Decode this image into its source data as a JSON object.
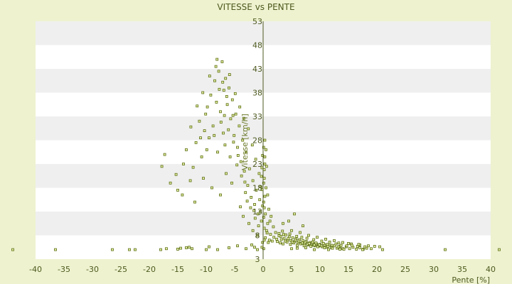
{
  "chart_data": {
    "type": "scatter",
    "title": "VITESSE vs PENTE",
    "xlabel": "Pente [%]",
    "ylabel": "Vitesse [km/h]",
    "xlim": [
      -40,
      40
    ],
    "ylim": [
      3,
      53
    ],
    "xticks": [
      -40,
      -35,
      -30,
      -25,
      -20,
      -15,
      -10,
      -5,
      0,
      5,
      10,
      15,
      20,
      25,
      30,
      35,
      40
    ],
    "yticks": [
      3,
      8,
      13,
      18,
      23,
      28,
      33,
      38,
      43,
      48,
      53
    ],
    "grid": "horizontal alternating bands",
    "legend": "none",
    "colors": {
      "background": "#eef2cf",
      "band_light": "#ffffff",
      "band_dark": "#efefef",
      "marker": "#5a6e12",
      "marker_fill": "#e8f0a8",
      "text": "#4d5a1f"
    },
    "series": [
      {
        "points": [
          [
            -44,
            5
          ],
          [
            -36.5,
            5
          ],
          [
            -26.5,
            5
          ],
          [
            -23.5,
            5
          ],
          [
            -22.5,
            5
          ],
          [
            -18,
            5
          ],
          [
            -17,
            5.2
          ],
          [
            -15,
            5.1
          ],
          [
            -14.5,
            5.3
          ],
          [
            -13.5,
            5.4
          ],
          [
            -13,
            5.5
          ],
          [
            -12.5,
            5.2
          ],
          [
            -10,
            5
          ],
          [
            -9.5,
            5.6
          ],
          [
            -8,
            5
          ],
          [
            -6,
            5.4
          ],
          [
            -4.5,
            5.8
          ],
          [
            -3,
            5.2
          ],
          [
            -2,
            6
          ],
          [
            -1.5,
            5.5
          ],
          [
            -1,
            5
          ],
          [
            -0.2,
            5.5
          ],
          [
            -0.1,
            6.5
          ],
          [
            0.1,
            5.2
          ],
          [
            0.2,
            7
          ],
          [
            -17.3,
            25
          ],
          [
            -17.8,
            22.5
          ],
          [
            -16.3,
            19
          ],
          [
            -15.3,
            20.8
          ],
          [
            -14,
            23
          ],
          [
            -13.5,
            26
          ],
          [
            -12.8,
            19.5
          ],
          [
            -12.3,
            22.3
          ],
          [
            -11.8,
            27.5
          ],
          [
            -11.2,
            32
          ],
          [
            -10.8,
            24.5
          ],
          [
            -10.3,
            30
          ],
          [
            -9.8,
            35
          ],
          [
            -9.5,
            28.5
          ],
          [
            -9.2,
            37.5
          ],
          [
            -8.8,
            31
          ],
          [
            -8.5,
            40.5
          ],
          [
            -8.2,
            36
          ],
          [
            -7.8,
            42.5
          ],
          [
            -7.5,
            34
          ],
          [
            -7.2,
            44.5
          ],
          [
            -6.9,
            38.5
          ],
          [
            -6.6,
            41
          ],
          [
            -6.3,
            35.5
          ],
          [
            -6,
            39
          ],
          [
            -5.7,
            32.5
          ],
          [
            -5.4,
            36.5
          ],
          [
            -5.1,
            29
          ],
          [
            -4.8,
            33.5
          ],
          [
            -4.5,
            26.5
          ],
          [
            -4.2,
            31
          ],
          [
            -3.9,
            23.5
          ],
          [
            -3.6,
            28
          ],
          [
            -3.3,
            21.5
          ],
          [
            -3,
            25.5
          ],
          [
            -2.7,
            18.5
          ],
          [
            -2.4,
            22
          ],
          [
            -2.1,
            16
          ],
          [
            -1.8,
            19.5
          ],
          [
            -1.5,
            14.5
          ],
          [
            -1.2,
            17.5
          ],
          [
            -0.9,
            12.5
          ],
          [
            -0.6,
            15.5
          ],
          [
            -0.3,
            11
          ],
          [
            -15,
            17.5
          ],
          [
            -14.2,
            16.5
          ],
          [
            -12,
            15
          ],
          [
            -10.5,
            20
          ],
          [
            -9,
            18
          ],
          [
            -7.5,
            16.5
          ],
          [
            -6.5,
            21
          ],
          [
            -5.5,
            19
          ],
          [
            -4,
            14
          ],
          [
            -3.5,
            12
          ],
          [
            -2.5,
            10.5
          ],
          [
            -1.8,
            9
          ],
          [
            -1,
            8
          ],
          [
            -8,
            25.5
          ],
          [
            -7,
            29.5
          ],
          [
            -6.7,
            27
          ],
          [
            -5.8,
            24.5
          ],
          [
            -9.9,
            26
          ],
          [
            -11,
            28.5
          ],
          [
            -10.1,
            33.5
          ],
          [
            -8.6,
            29
          ],
          [
            -7.4,
            31.8
          ],
          [
            -6.1,
            30.2
          ],
          [
            -5.2,
            27.6
          ],
          [
            -4.6,
            22.8
          ],
          [
            -3.8,
            20.5
          ],
          [
            -3.1,
            17
          ],
          [
            -2.2,
            13.8
          ],
          [
            -1.4,
            11.6
          ],
          [
            -12.7,
            30.8
          ],
          [
            -11.6,
            35.2
          ],
          [
            -10.6,
            38
          ],
          [
            -9.4,
            41.5
          ],
          [
            -8.3,
            43.5
          ],
          [
            -7.7,
            38.7
          ],
          [
            -6.8,
            33.2
          ],
          [
            -5.9,
            41.8
          ],
          [
            -4.9,
            37.8
          ],
          [
            -4.1,
            35
          ],
          [
            -3.4,
            32.6
          ],
          [
            -2.6,
            30.4
          ],
          [
            -1.9,
            27
          ],
          [
            -1.3,
            24
          ],
          [
            -0.7,
            21
          ],
          [
            -0.4,
            18.2
          ],
          [
            0.1,
            15
          ],
          [
            0.2,
            20
          ],
          [
            0.3,
            24.5
          ],
          [
            0.4,
            12.5
          ],
          [
            0.5,
            18
          ],
          [
            0.6,
            22.5
          ],
          [
            0.8,
            16.5
          ],
          [
            1,
            13.5
          ],
          [
            1.2,
            11
          ],
          [
            0.3,
            28
          ],
          [
            0.5,
            26
          ],
          [
            0.2,
            9.5
          ],
          [
            0.4,
            7.5
          ],
          [
            0.6,
            9
          ],
          [
            0.8,
            10.5
          ],
          [
            1.4,
            12
          ],
          [
            1.8,
            9.8
          ],
          [
            2.2,
            8.6
          ],
          [
            1.6,
            6.8
          ],
          [
            1.9,
            7.6
          ],
          [
            2.4,
            7.2
          ],
          [
            2.8,
            8.4
          ],
          [
            3.1,
            7.8
          ],
          [
            3.4,
            8.9
          ],
          [
            3.7,
            7.4
          ],
          [
            4,
            8.1
          ],
          [
            4.3,
            7
          ],
          [
            4.6,
            7.7
          ],
          [
            4.9,
            6.9
          ],
          [
            5.2,
            7.5
          ],
          [
            5.5,
            6.7
          ],
          [
            5.8,
            7.3
          ],
          [
            6.1,
            6.5
          ],
          [
            6.4,
            7.1
          ],
          [
            6.7,
            6.3
          ],
          [
            7,
            6.9
          ],
          [
            7.3,
            6.2
          ],
          [
            7.6,
            6.7
          ],
          [
            7.9,
            6
          ],
          [
            8.2,
            6.5
          ],
          [
            8.5,
            5.9
          ],
          [
            8.8,
            6.3
          ],
          [
            9.1,
            5.8
          ],
          [
            9.4,
            6.2
          ],
          [
            9.7,
            5.7
          ],
          [
            10,
            6.1
          ],
          [
            10.4,
            5.6
          ],
          [
            10.8,
            6
          ],
          [
            11.2,
            5.5
          ],
          [
            11.6,
            5.9
          ],
          [
            12,
            5.4
          ],
          [
            12.5,
            5.8
          ],
          [
            13,
            5.3
          ],
          [
            13.5,
            5.7
          ],
          [
            14,
            5.2
          ],
          [
            14.6,
            5.6
          ],
          [
            15.2,
            5.2
          ],
          [
            15.8,
            5.5
          ],
          [
            16.4,
            5.1
          ],
          [
            17,
            5.4
          ],
          [
            17.6,
            5.1
          ],
          [
            18.2,
            5.3
          ],
          [
            3,
            6.4
          ],
          [
            3.5,
            6.2
          ],
          [
            4.2,
            6.6
          ],
          [
            4.8,
            6.1
          ],
          [
            5.4,
            6.4
          ],
          [
            6,
            5.9
          ],
          [
            6.6,
            6.2
          ],
          [
            7.2,
            5.8
          ],
          [
            7.8,
            6.1
          ],
          [
            8.4,
            5.7
          ],
          [
            9,
            6
          ],
          [
            9.6,
            5.6
          ],
          [
            10.2,
            5.8
          ],
          [
            10.8,
            5.4
          ],
          [
            11.4,
            5.7
          ],
          [
            12.2,
            5.3
          ],
          [
            13.2,
            5.6
          ],
          [
            14.2,
            5.1
          ],
          [
            5,
            9
          ],
          [
            6.5,
            8.6
          ],
          [
            8,
            8
          ],
          [
            9.5,
            7.6
          ],
          [
            11,
            7.2
          ],
          [
            12.5,
            6.9
          ],
          [
            14,
            6.5
          ],
          [
            15.5,
            6.2
          ],
          [
            17,
            6
          ],
          [
            18.5,
            5.8
          ],
          [
            20.5,
            5.6
          ],
          [
            4.5,
            11
          ],
          [
            5.5,
            12.5
          ],
          [
            3.5,
            10.5
          ],
          [
            7,
            10
          ],
          [
            5,
            5.2
          ],
          [
            6,
            5.3
          ],
          [
            7.5,
            5.4
          ],
          [
            9,
            5
          ],
          [
            11.5,
            5
          ],
          [
            13.5,
            5.1
          ],
          [
            17.5,
            5
          ],
          [
            19,
            5.2
          ],
          [
            21,
            5
          ],
          [
            32,
            5
          ],
          [
            41.5,
            5
          ],
          [
            2.5,
            6.7
          ],
          [
            3.2,
            7.1
          ],
          [
            3.9,
            6.8
          ],
          [
            4.4,
            7.3
          ],
          [
            5.1,
            6.6
          ],
          [
            5.7,
            7
          ],
          [
            6.3,
            6.8
          ],
          [
            6.9,
            6.4
          ],
          [
            7.4,
            6.6
          ],
          [
            8.1,
            6.3
          ],
          [
            8.7,
            6.6
          ],
          [
            9.3,
            6.4
          ],
          [
            9.9,
            6
          ],
          [
            10.6,
            6.3
          ],
          [
            11.3,
            6.1
          ],
          [
            12.1,
            5.9
          ],
          [
            12.8,
            6.2
          ],
          [
            13.7,
            5.9
          ],
          [
            14.7,
            5.8
          ],
          [
            15.6,
            5.9
          ],
          [
            16.6,
            5.7
          ],
          [
            17.9,
            5.6
          ],
          [
            19.6,
            5.7
          ],
          [
            2.8,
            7.9
          ],
          [
            3.6,
            8.2
          ],
          [
            4.7,
            8.3
          ],
          [
            5.9,
            7.8
          ],
          [
            6.8,
            7.6
          ],
          [
            7.7,
            7.4
          ],
          [
            8.9,
            7.1
          ],
          [
            10.3,
            6.8
          ],
          [
            11.7,
            6.6
          ],
          [
            13.3,
            6.4
          ],
          [
            15,
            6.3
          ],
          [
            16.8,
            6.1
          ],
          [
            1.3,
            8.2
          ],
          [
            1.1,
            7
          ],
          [
            0.9,
            6.5
          ],
          [
            0.7,
            8.5
          ],
          [
            0.1,
            11.8
          ],
          [
            0.2,
            13.8
          ],
          [
            0.3,
            16.2
          ],
          [
            0.1,
            19
          ],
          [
            0.2,
            21.8
          ],
          [
            0.3,
            23
          ],
          [
            0.1,
            26.5
          ],
          [
            -0.1,
            24.8
          ],
          [
            -0.2,
            22.2
          ],
          [
            -0.3,
            20.4
          ],
          [
            -0.2,
            17.6
          ],
          [
            -0.1,
            14.2
          ],
          [
            -0.5,
            13
          ],
          [
            -0.8,
            10
          ],
          [
            -1.6,
            13.2
          ],
          [
            -2.8,
            15.2
          ],
          [
            -3.2,
            19.2
          ],
          [
            -4.4,
            24.8
          ],
          [
            -5.3,
            33.2
          ],
          [
            -6.4,
            37.2
          ],
          [
            -7.1,
            40.2
          ],
          [
            -8.1,
            45
          ]
        ]
      }
    ]
  }
}
